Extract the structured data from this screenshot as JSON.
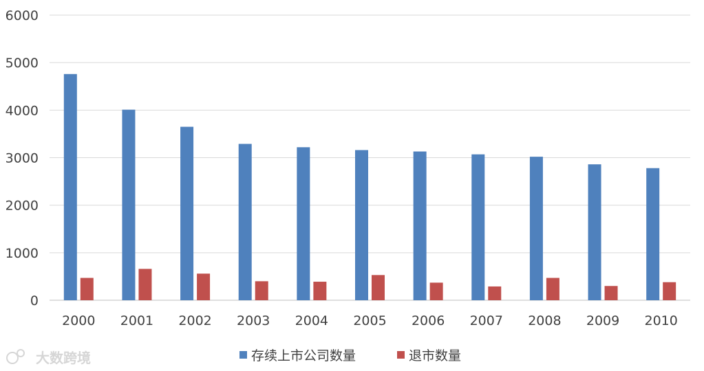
{
  "chart_data": {
    "type": "bar",
    "title": "",
    "xlabel": "",
    "ylabel": "",
    "categories": [
      "2000",
      "2001",
      "2002",
      "2003",
      "2004",
      "2005",
      "2006",
      "2007",
      "2008",
      "2009",
      "2010"
    ],
    "series": [
      {
        "name": "存续上市公司数量",
        "color": "#4f81bd",
        "values": [
          4760,
          4010,
          3650,
          3290,
          3220,
          3160,
          3130,
          3070,
          3020,
          2860,
          2780
        ]
      },
      {
        "name": "退市数量",
        "color": "#c0504d",
        "values": [
          470,
          660,
          560,
          400,
          390,
          530,
          370,
          290,
          470,
          300,
          380
        ]
      }
    ],
    "ylim": [
      0,
      6000
    ],
    "yticks": [
      0,
      1000,
      2000,
      3000,
      4000,
      5000,
      6000
    ],
    "grid": true,
    "legend": "bottom-center"
  },
  "watermark": {
    "text": "大数跨境"
  }
}
